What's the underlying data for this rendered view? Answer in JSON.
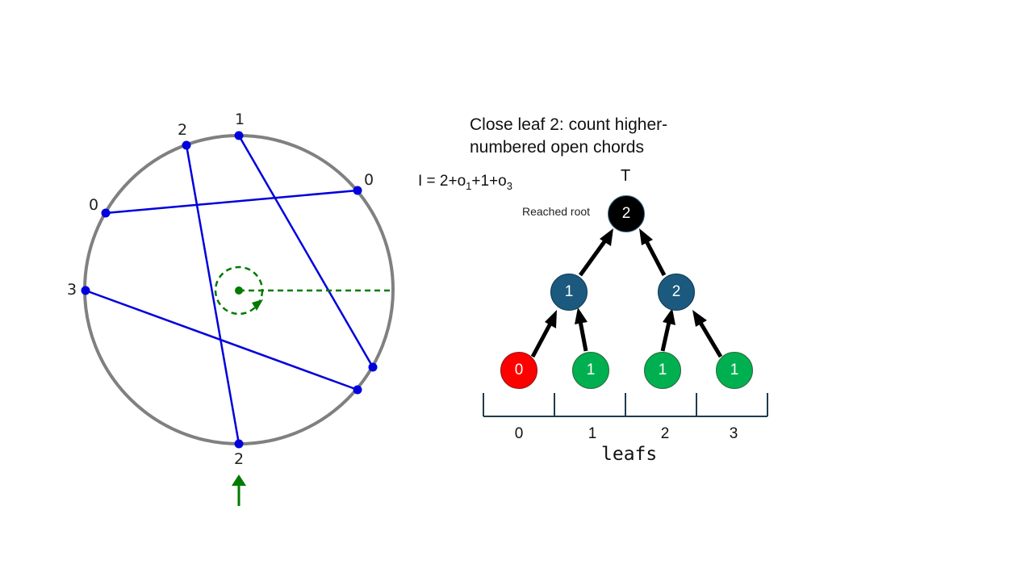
{
  "title": "Close leaf 2: count higher-numbered open chords",
  "formula": {
    "prefix": "I = 2+o",
    "sub1": "1",
    "mid": "+1+o",
    "sub2": "3"
  },
  "tree": {
    "root_label": "T",
    "reached_label": "Reached root",
    "root": {
      "value": "2",
      "color": "#000000"
    },
    "internal": [
      {
        "value": "1",
        "color": "#1b5a7e"
      },
      {
        "value": "2",
        "color": "#1b5a7e"
      }
    ],
    "leaves": [
      {
        "value": "0",
        "color": "#ff0000"
      },
      {
        "value": "1",
        "color": "#00b050"
      },
      {
        "value": "1",
        "color": "#00b050"
      },
      {
        "value": "1",
        "color": "#00b050"
      }
    ],
    "leaf_indices": [
      "0",
      "1",
      "2",
      "3"
    ],
    "axis_label": "leafs"
  },
  "circle": {
    "point_labels": [
      "1",
      "2",
      "0",
      "0",
      "3",
      "2"
    ],
    "chord_color": "#0000dd",
    "rim_color": "#808080",
    "sweep_color": "#007a00",
    "pointer_icon": "up-arrow-icon"
  }
}
